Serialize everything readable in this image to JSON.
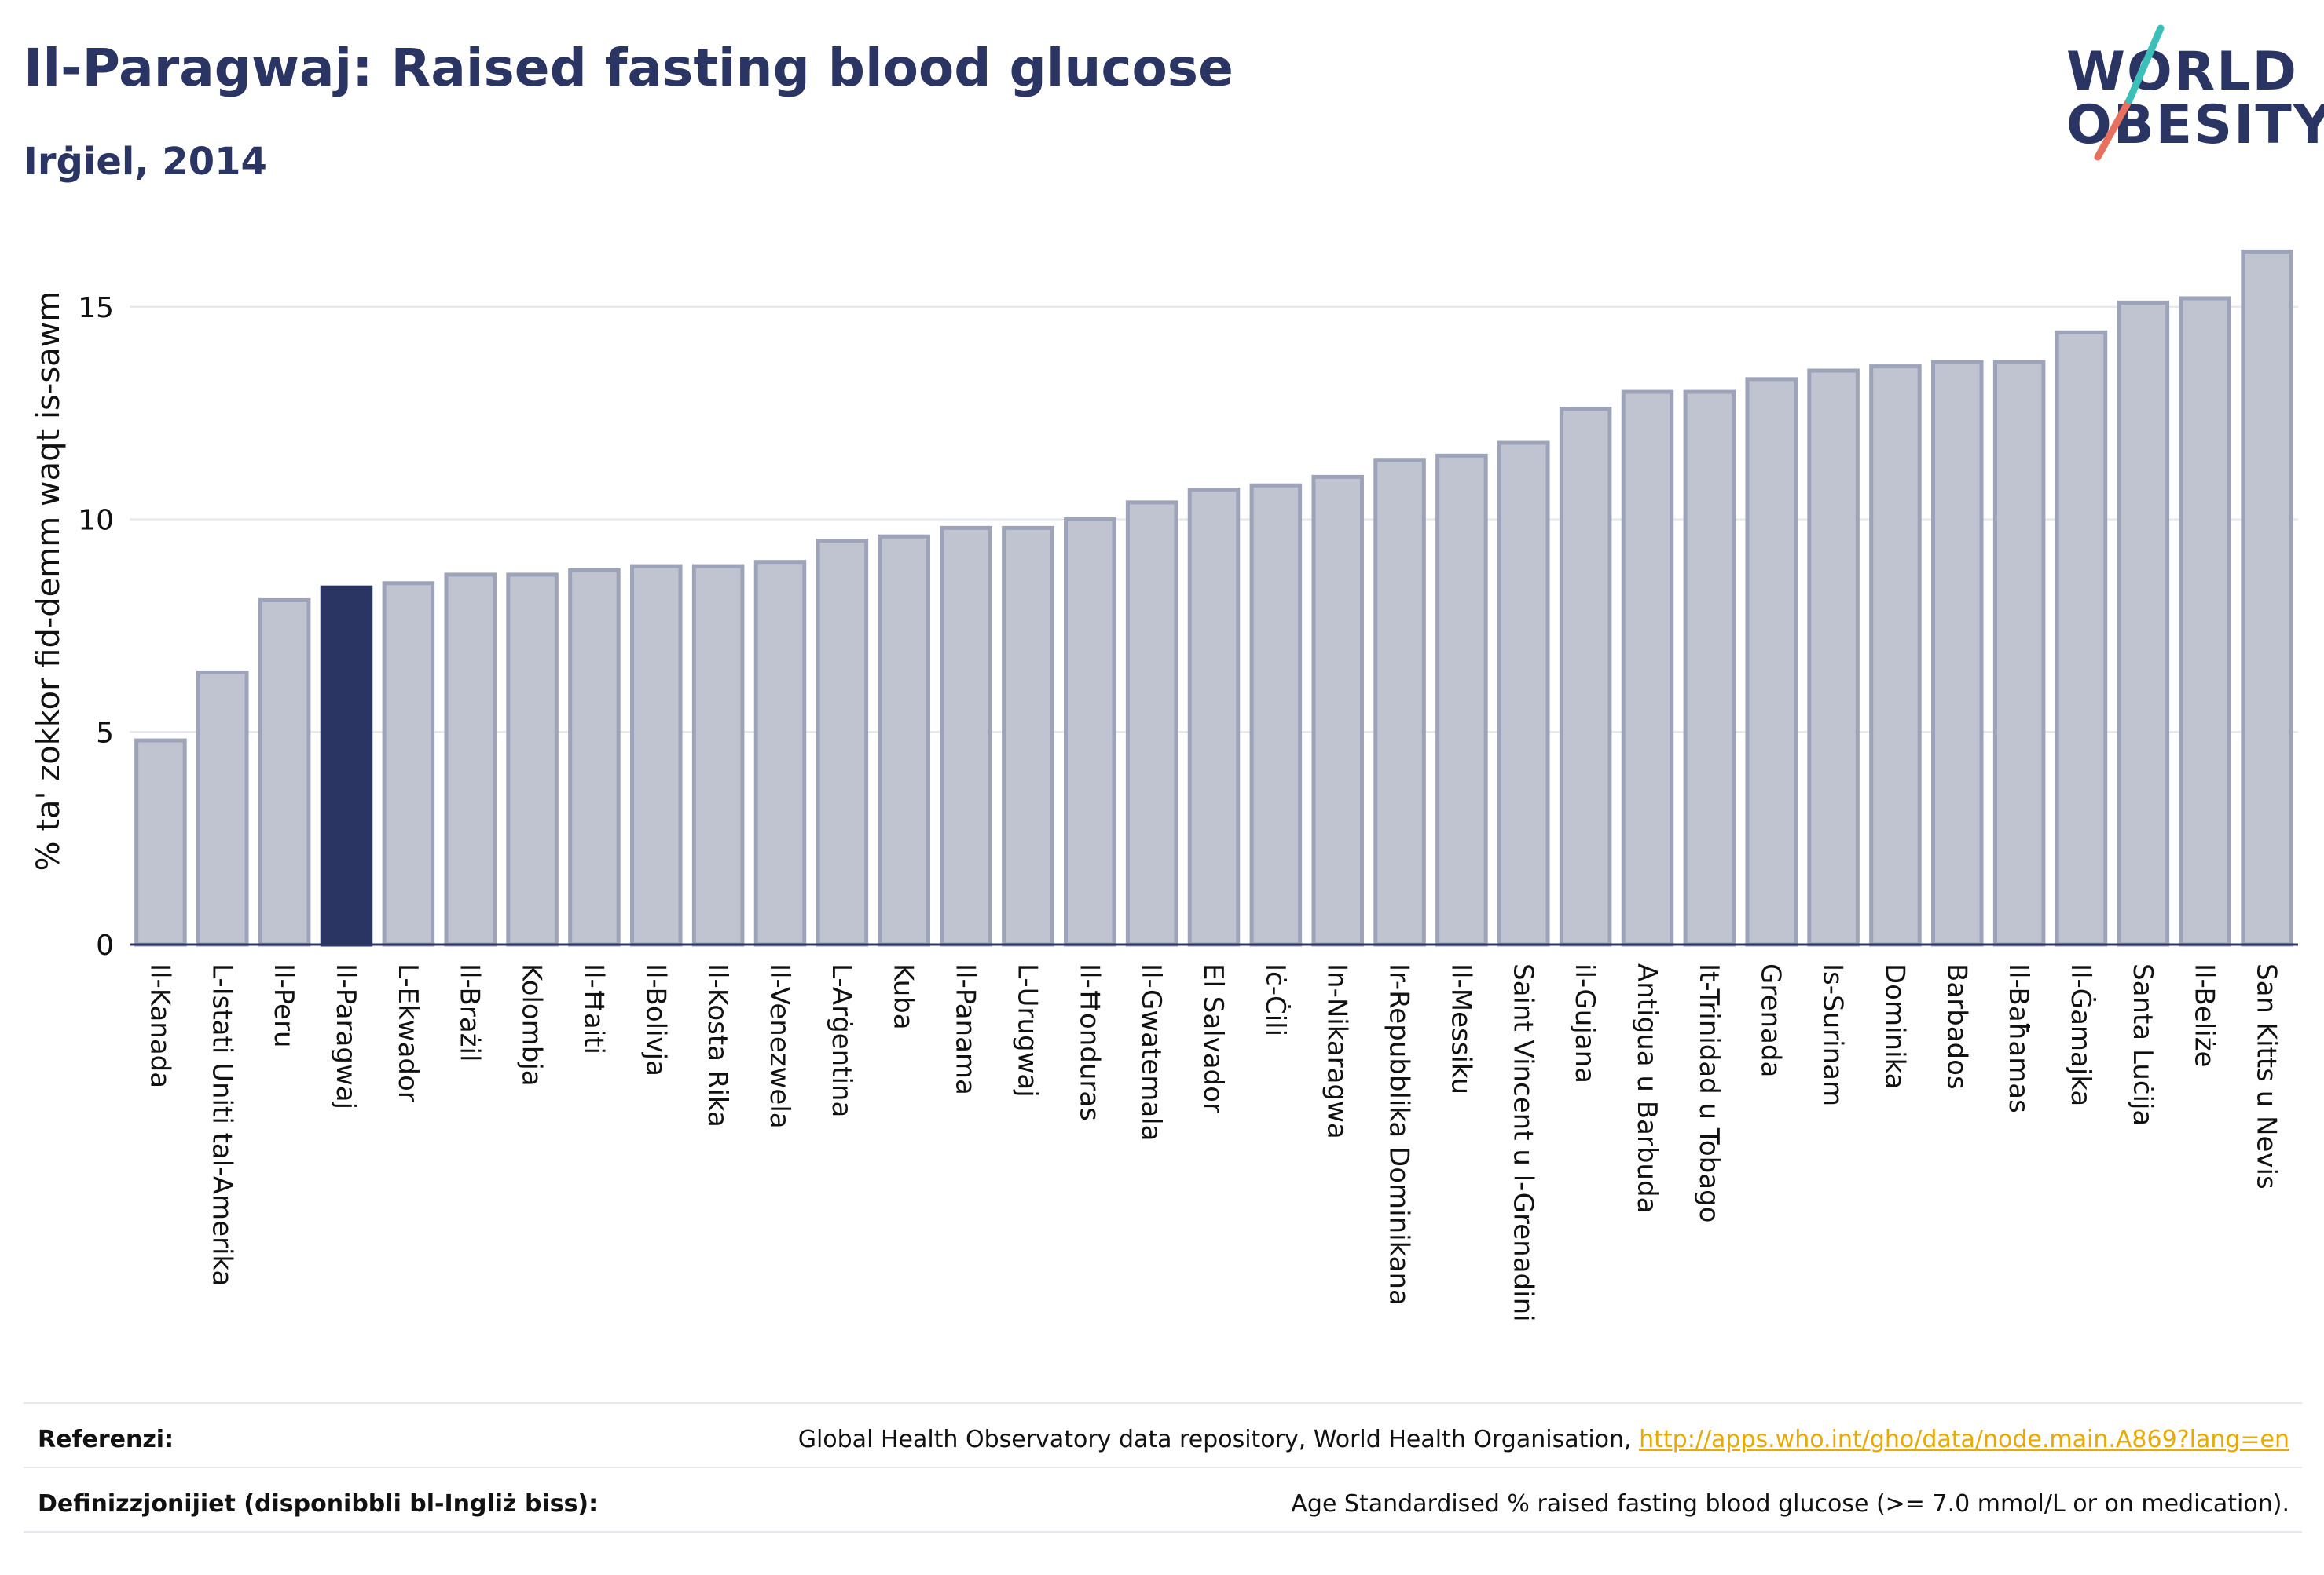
{
  "header": {
    "title": "Il-Paragwaj: Raised fasting blood glucose",
    "subtitle": "Irġiel, 2014"
  },
  "logo": {
    "line1": "WORLD",
    "line2": "OBESITY",
    "colors": {
      "text": "#2b3563",
      "slash_teal": "#3bbfb8",
      "slash_coral": "#e8705e"
    }
  },
  "chart_data": {
    "type": "bar",
    "title": "Il-Paragwaj: Raised fasting blood glucose",
    "subtitle": "Irġiel, 2014",
    "xlabel": "",
    "ylabel": "% ta' zokkor fid-demm waqt is-sawm",
    "ylim": [
      0,
      16.4
    ],
    "yticks": [
      0,
      5,
      10,
      15
    ],
    "grid": true,
    "highlight": "Il-Paragwaj",
    "colors": {
      "bar": "#c0c3d0",
      "bar_border": "#9da3b8",
      "highlight": "#2b3563",
      "grid": "#e3e5ec"
    },
    "categories": [
      "Il-Kanada",
      "L-Istati Uniti tal-Amerika",
      "Il-Peru",
      "Il-Paragwaj",
      "L-Ekwador",
      "Il-Brażil",
      "Kolombja",
      "Il-Ħaiti",
      "Il-Bolivja",
      "Il-Kosta Rika",
      "Il-Venezwela",
      "L-Arġentina",
      "Kuba",
      "Il-Panama",
      "L-Urugwaj",
      "Il-Ħonduras",
      "Il-Gwatemala",
      "El Salvador",
      "Iċ-Ċili",
      "In-Nikaragwa",
      "Ir-Repubblika Dominikana",
      "Il-Messiku",
      "Saint Vincent u l-Grenadini",
      "il-Gujana",
      "Antigua u Barbuda",
      "It-Trinidad u Tobago",
      "Grenada",
      "Is-Surinam",
      "Dominika",
      "Barbados",
      "Il-Baħamas",
      "Il-Ġamajka",
      "Santa Luċija",
      "Il-Beliże",
      "San Kitts u Nevis"
    ],
    "values": [
      4.8,
      6.4,
      8.1,
      8.4,
      8.5,
      8.7,
      8.7,
      8.8,
      8.9,
      8.9,
      9.0,
      9.5,
      9.6,
      9.8,
      9.8,
      10.0,
      10.4,
      10.7,
      10.8,
      11.0,
      11.4,
      11.5,
      11.8,
      12.6,
      13.0,
      13.0,
      13.3,
      13.5,
      13.6,
      13.7,
      13.7,
      14.4,
      15.1,
      15.2,
      16.3
    ]
  },
  "footer": {
    "references_label": "Referenzi:",
    "references_text": "Global Health Observatory data repository, World Health Organisation,",
    "references_link": "http://apps.who.int/gho/data/node.main.A869?lang=en",
    "definitions_label": "Definizzjonijiet (disponibbli bl-Ingliż biss):",
    "definitions_text": "Age Standardised % raised fasting blood glucose (>= 7.0 mmol/L or on medication)."
  }
}
